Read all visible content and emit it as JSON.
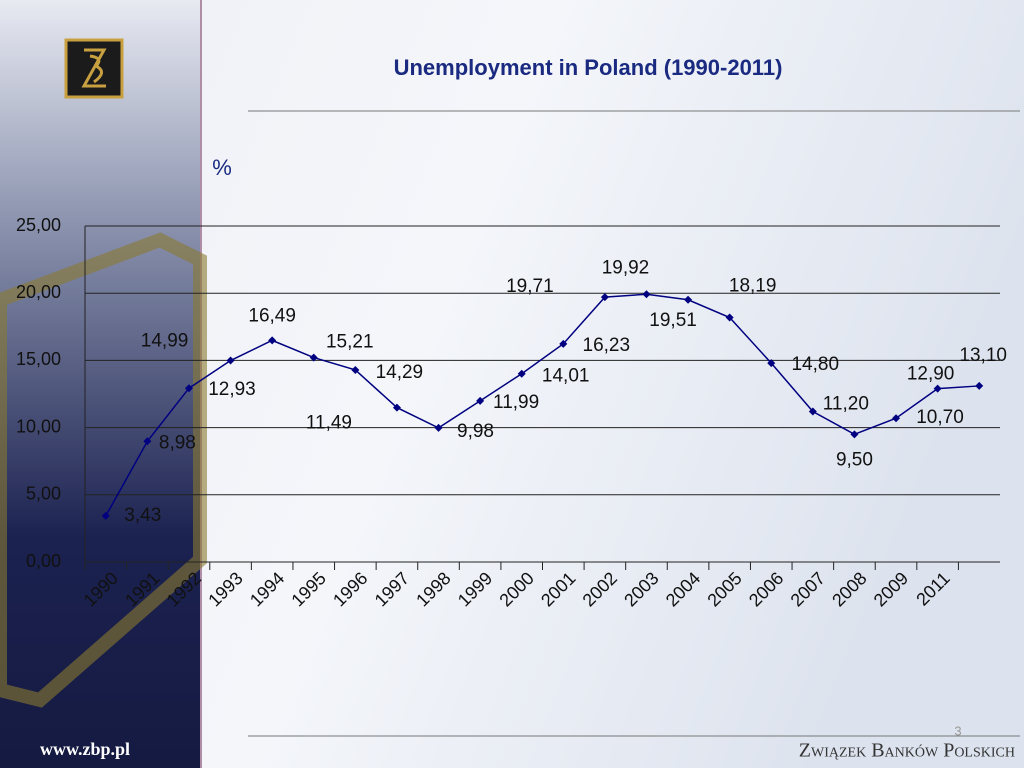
{
  "header": {
    "title": "Unemployment in Poland (1990-2011)",
    "page_number": "3"
  },
  "footer": {
    "url": "www.zbp.pl",
    "organization": "Związek Banków Polskich"
  },
  "chart_data": {
    "type": "line",
    "y_unit_label": "%",
    "categories": [
      "1990",
      "1991",
      "1992",
      "1993",
      "1994",
      "1995",
      "1996",
      "1997",
      "1998",
      "1999",
      "2000",
      "2001",
      "2002",
      "2003",
      "2004",
      "2005",
      "2006",
      "2007",
      "2008",
      "2009",
      "2011",
      null
    ],
    "series": [
      {
        "name": "Unemployment",
        "color": "#000080",
        "values": [
          3.43,
          8.98,
          12.93,
          14.99,
          16.49,
          15.21,
          14.29,
          11.49,
          9.98,
          11.99,
          14.01,
          16.23,
          19.71,
          19.92,
          19.51,
          18.19,
          14.8,
          11.2,
          9.5,
          10.7,
          12.9,
          13.1
        ],
        "value_labels": [
          "3,43",
          "8,98",
          "12,93",
          "14,99",
          "16,49",
          "15,21",
          "14,29",
          "11,49",
          "9,98",
          "11,99",
          "14,01",
          "16,23",
          "19,71",
          "19,92",
          "19,51",
          "18,19",
          "14,80",
          "11,20",
          "9,50",
          "10,70",
          "12,90",
          "13,10"
        ]
      }
    ],
    "ylim": [
      0,
      25
    ],
    "yticks": [
      {
        "value": 0,
        "label": "0,00"
      },
      {
        "value": 5,
        "label": "5,00"
      },
      {
        "value": 10,
        "label": "10,00"
      },
      {
        "value": 15,
        "label": "15,00"
      },
      {
        "value": 20,
        "label": "20,00"
      },
      {
        "value": 25,
        "label": "25,00"
      }
    ],
    "grid": true
  }
}
